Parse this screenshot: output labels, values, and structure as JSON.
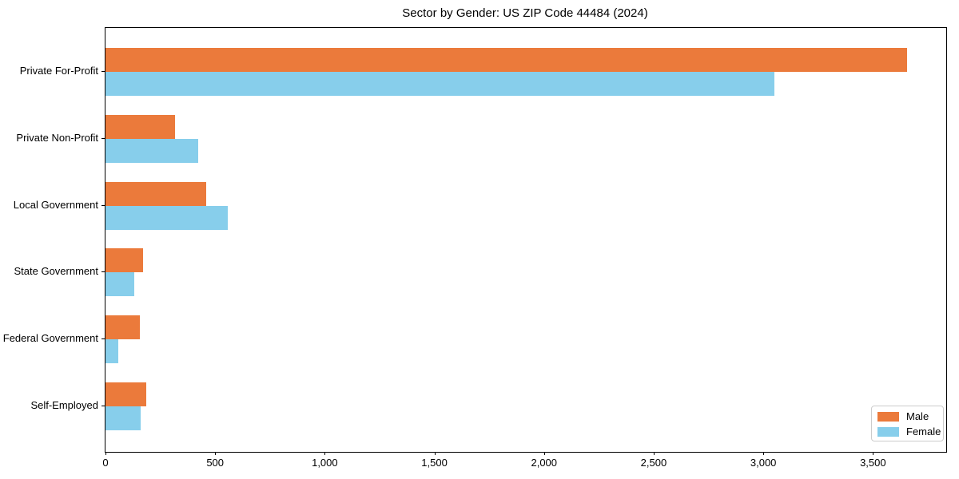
{
  "chart_data": {
    "type": "bar",
    "orientation": "horizontal",
    "title": "Sector by Gender: US ZIP Code 44484 (2024)",
    "categories": [
      "Private For-Profit",
      "Private Non-Profit",
      "Local Government",
      "State Government",
      "Federal Government",
      "Self-Employed"
    ],
    "series": [
      {
        "name": "Male",
        "color": "#EB7A3B",
        "values": [
          3655,
          318,
          458,
          171,
          157,
          187
        ]
      },
      {
        "name": "Female",
        "color": "#87CEEB",
        "values": [
          3050,
          424,
          559,
          130,
          57,
          160
        ]
      }
    ],
    "xlim": [
      0,
      3834
    ],
    "xticks": [
      0,
      500,
      1000,
      1500,
      2000,
      2500,
      3000,
      3500
    ],
    "xtick_labels": [
      "0",
      "500",
      "1,000",
      "1,500",
      "2,000",
      "2,500",
      "3,000",
      "3,500"
    ],
    "ylabel": "",
    "xlabel": "",
    "grid": false,
    "legend_position": "lower right",
    "legend_items": [
      "Male",
      "Female"
    ]
  }
}
